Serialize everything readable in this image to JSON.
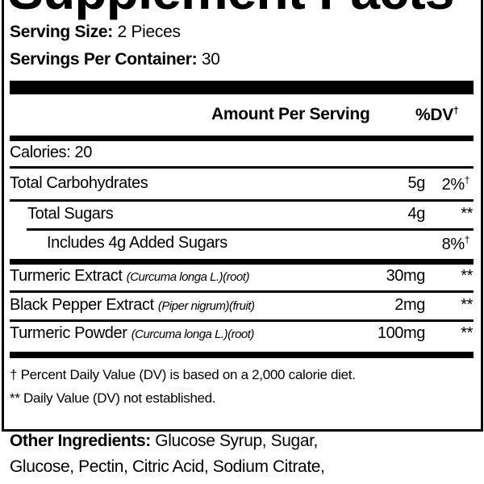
{
  "label": {
    "title": "Supplement Facts",
    "serving_size_label": "Serving Size:",
    "serving_size_value": "2 Pieces",
    "servings_per_container_label": "Servings Per Container:",
    "servings_per_container_value": "30",
    "amount_header": "Amount Per Serving",
    "dv_header": "%DV",
    "dagger": "†",
    "calories": "Calories: 20",
    "rows": [
      {
        "name": "Total Carbohydrates",
        "latin": "",
        "amount": "5g",
        "dv": "2%",
        "dv_mark": "†"
      },
      {
        "name": "Total Sugars",
        "latin": "",
        "amount": "4g",
        "dv": "**",
        "dv_mark": ""
      },
      {
        "name": "Includes 4g Added Sugars",
        "latin": "",
        "amount": "",
        "dv": "8%",
        "dv_mark": "†"
      },
      {
        "name": "Turmeric Extract",
        "latin": "(Curcuma longa L.)(root)",
        "amount": "30mg",
        "dv": "**",
        "dv_mark": ""
      },
      {
        "name": "Black Pepper Extract",
        "latin": "(Piper nigrum)(fruit)",
        "amount": "2mg",
        "dv": "**",
        "dv_mark": ""
      },
      {
        "name": "Turmeric Powder",
        "latin": "(Curcuma longa L.)(root)",
        "amount": "100mg",
        "dv": "**",
        "dv_mark": ""
      }
    ],
    "footnote_1": "† Percent Daily Value (DV) is based on a 2,000 calorie diet.",
    "footnote_2": "** Daily Value (DV) not established."
  },
  "other_ingredients": {
    "label": "Other Ingredients:",
    "line_1": "Glucose Syrup, Sugar,",
    "line_2": "Glucose, Pectin, Citric Acid, Sodium Citrate,"
  }
}
